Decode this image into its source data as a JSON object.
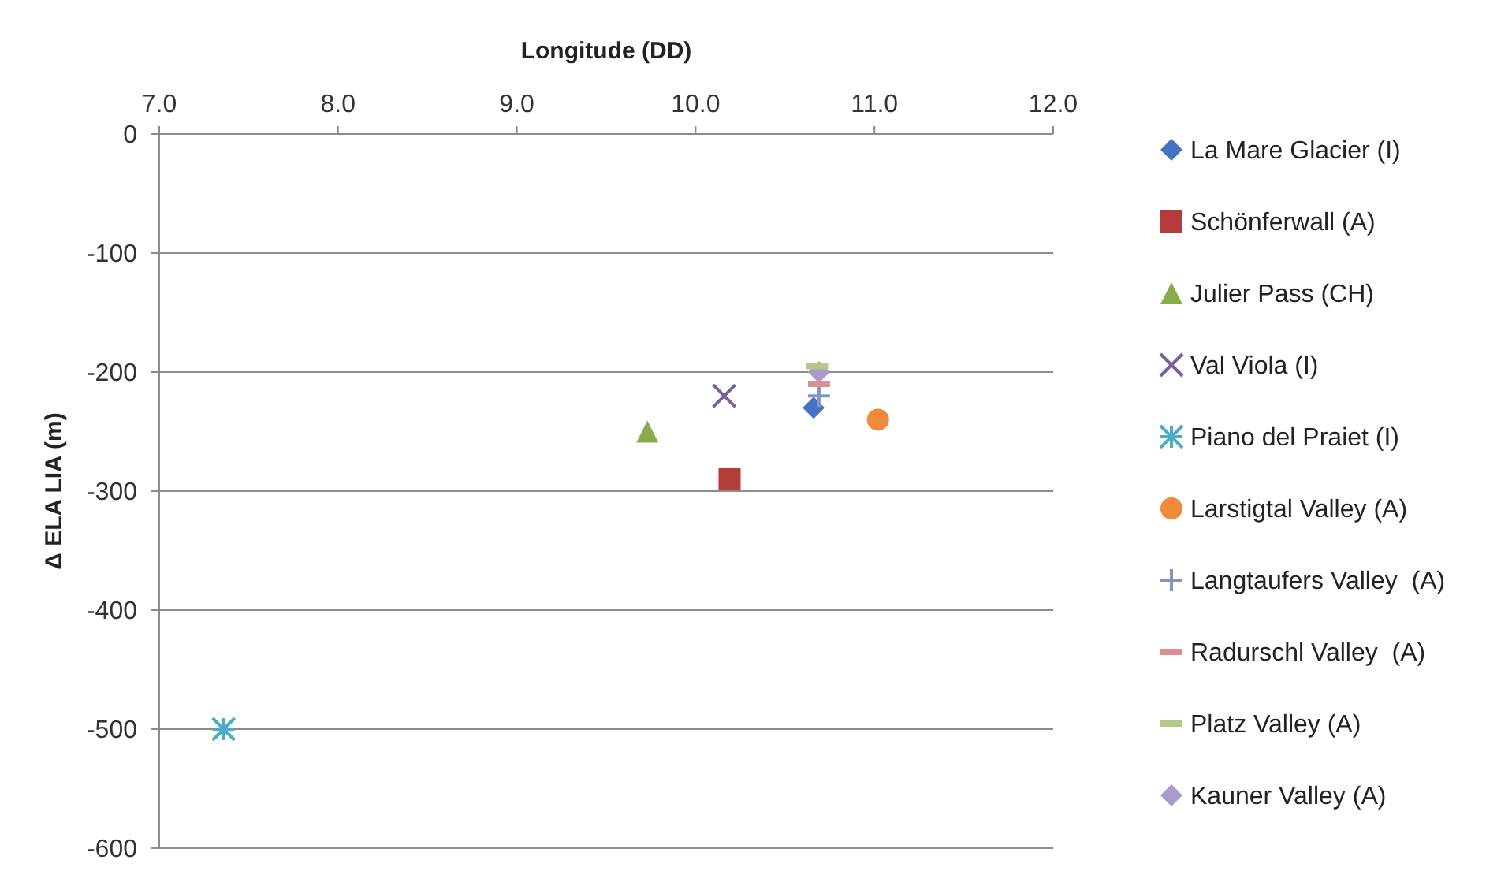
{
  "chart_data": {
    "type": "scatter",
    "xlabel": "Longitude (DD)",
    "ylabel": "Δ ELA LIA (m)",
    "xlim": [
      7,
      12
    ],
    "xticks": [
      {
        "value": 7,
        "label": "7.0"
      },
      {
        "value": 8,
        "label": "8.0"
      },
      {
        "value": 9,
        "label": "9.0"
      },
      {
        "value": 10,
        "label": "10.0"
      },
      {
        "value": 11,
        "label": "11.0"
      },
      {
        "value": 12,
        "label": "12.0"
      }
    ],
    "ylim": [
      -600,
      0
    ],
    "yticks": [
      -600,
      -500,
      -400,
      -300,
      -200,
      -100,
      0
    ],
    "grid": "y",
    "legend": "right",
    "series": [
      {
        "name": "La Mare Glacier (I)",
        "color": "#4472c4",
        "marker": "diamond",
        "x": [
          10.66
        ],
        "values": [
          -230
        ]
      },
      {
        "name": "Schönferwall (A)",
        "color": "#b23c3a",
        "marker": "square",
        "x": [
          10.19
        ],
        "values": [
          -290
        ]
      },
      {
        "name": "Julier Pass (CH)",
        "color": "#8aab4a",
        "marker": "triangle",
        "x": [
          9.73
        ],
        "values": [
          -250
        ]
      },
      {
        "name": "Val Viola (I)",
        "color": "#7a5fa0",
        "marker": "x",
        "x": [
          10.16
        ],
        "values": [
          -220
        ]
      },
      {
        "name": "Piano del Praiet (I)",
        "color": "#4bacc6",
        "marker": "cross",
        "x": [
          7.36
        ],
        "values": [
          -500
        ]
      },
      {
        "name": "Larstigtal Valley (A)",
        "color": "#ee8a3a",
        "marker": "circle",
        "x": [
          11.02
        ],
        "values": [
          -240
        ]
      },
      {
        "name": "Langtaufers Valley  (A)",
        "color": "#8096c0",
        "marker": "plus",
        "x": [
          10.69
        ],
        "values": [
          -220
        ]
      },
      {
        "name": "Radurschl Valley  (A)",
        "color": "#d9908e",
        "x": [
          10.69
        ],
        "values": [
          -210
        ]
      },
      {
        "name": "Platz Valley (A)",
        "color": "#b3c98a",
        "x": [
          10.68
        ],
        "values": [
          -195
        ]
      },
      {
        "name": "Kauner Valley (A)",
        "color": "#a99bcb",
        "marker": "diamond",
        "x": [
          10.69
        ],
        "values": [
          -200
        ]
      }
    ]
  }
}
